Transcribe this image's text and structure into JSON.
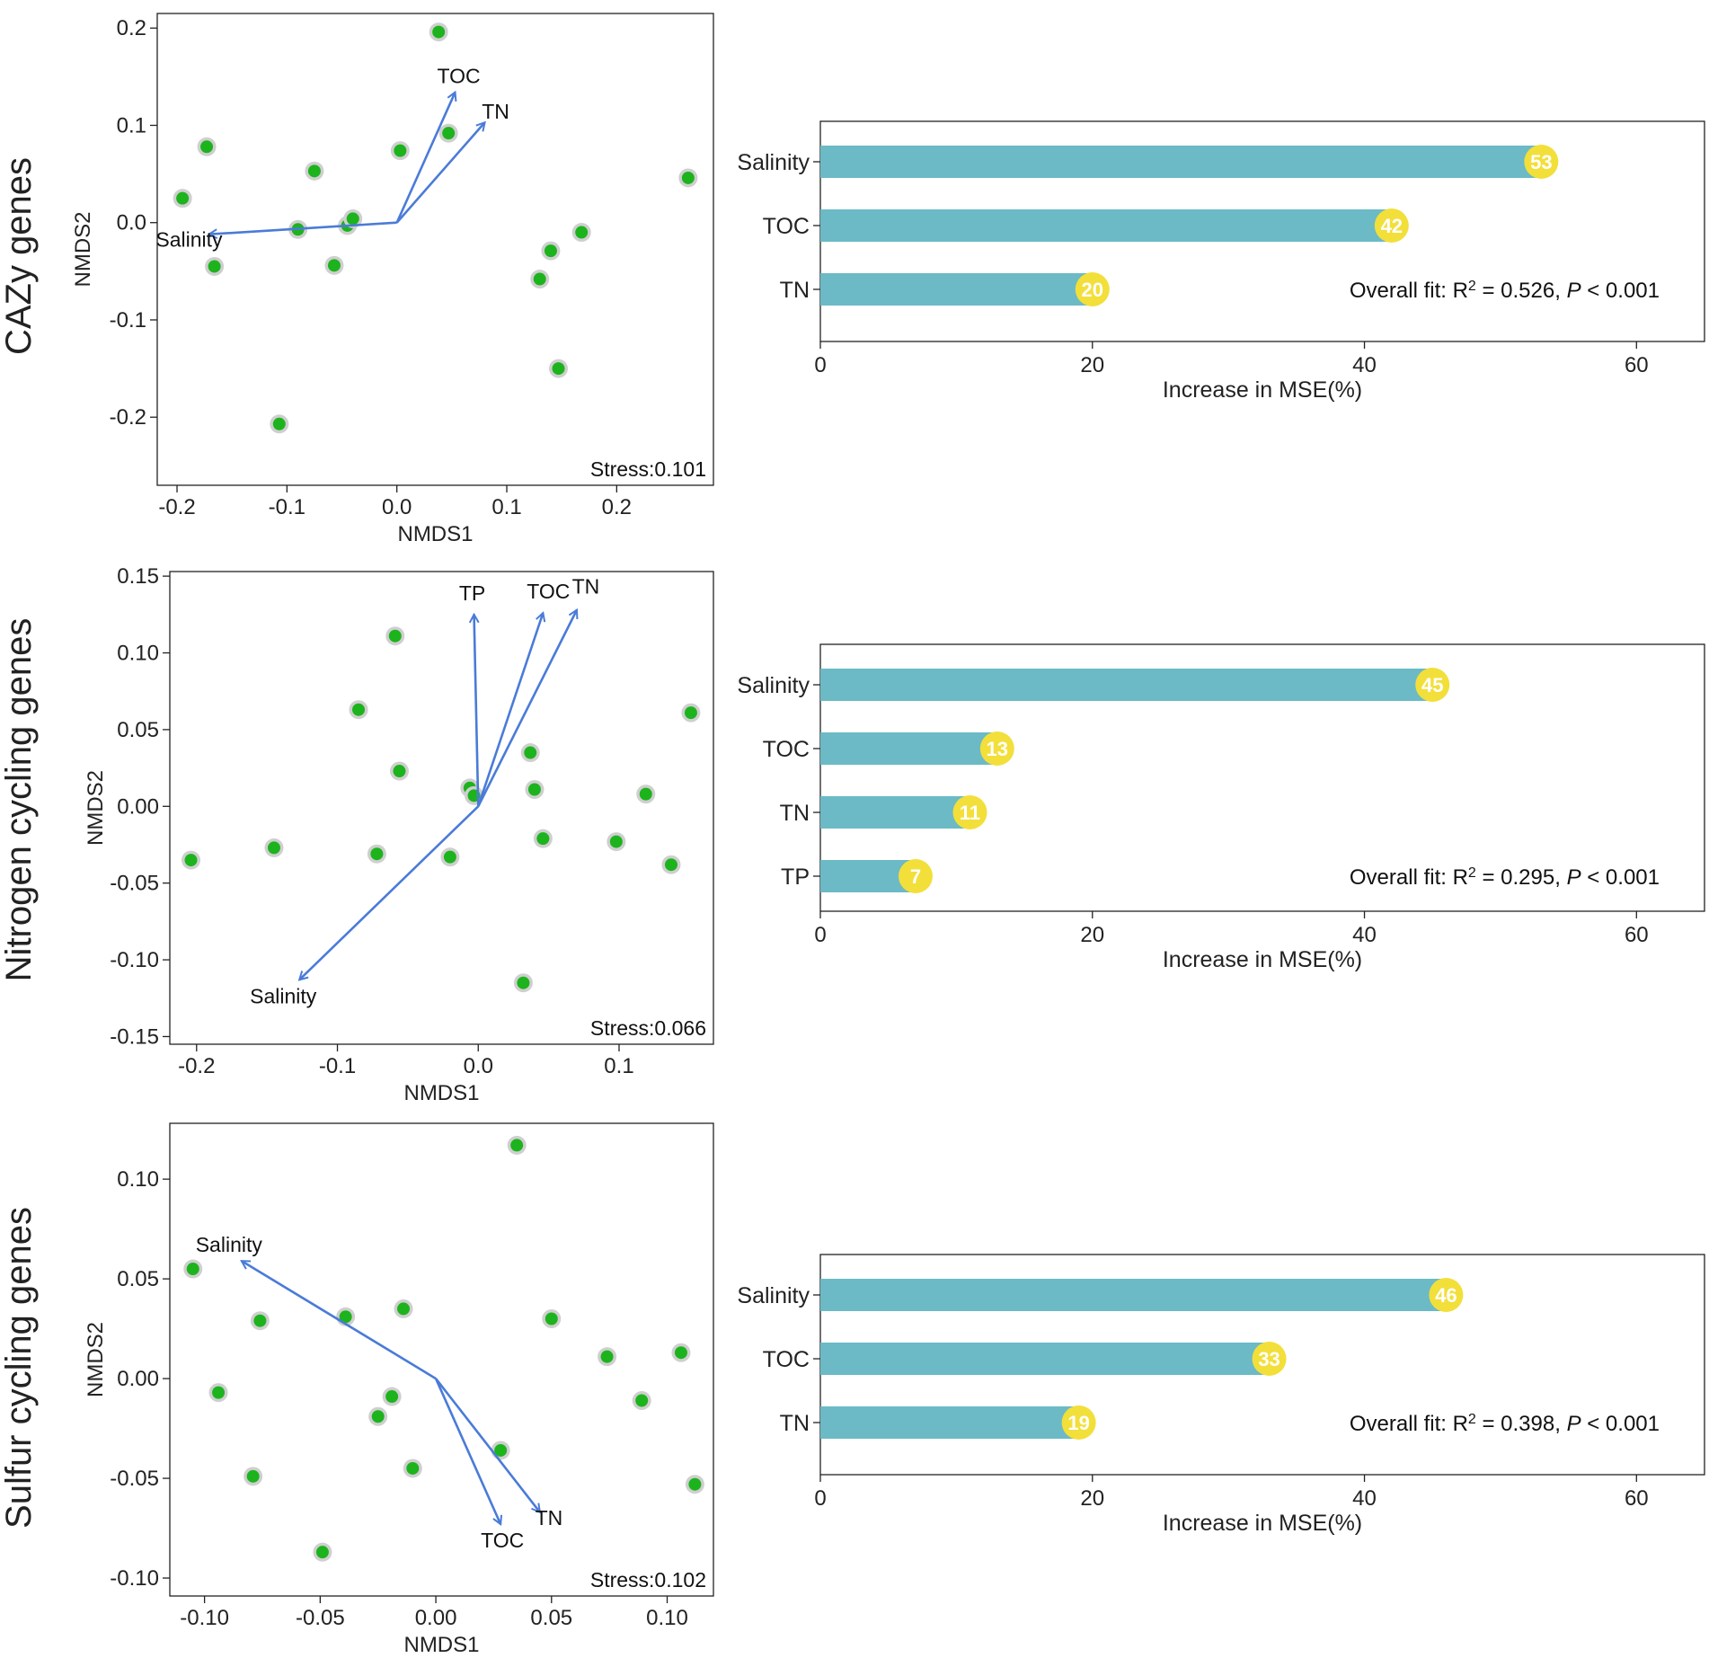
{
  "colors": {
    "point_fill": "#1db31d",
    "point_ring": "#cfcfcf",
    "arrow": "#4a7bd8",
    "bar": "#6bbac6",
    "badge": "#f2df3a",
    "badge_text": "#ffffff",
    "axis": "#222222"
  },
  "chart_data": [
    {
      "id": "cazy",
      "type": "scatter",
      "row_label": "CAZy genes",
      "xlabel": "NMDS1",
      "ylabel": "NMDS2",
      "xlim": [
        -0.218,
        0.288
      ],
      "ylim": [
        -0.27,
        0.215
      ],
      "xticks": [
        -0.2,
        -0.1,
        0.0,
        0.1,
        0.2
      ],
      "xtick_labels": [
        "-0.2",
        "-0.1",
        "0.0",
        "0.1",
        "0.2"
      ],
      "yticks": [
        -0.2,
        -0.1,
        0.0,
        0.1,
        0.2
      ],
      "ytick_labels": [
        "-0.2",
        "-0.1",
        "0.0",
        "0.1",
        "0.2"
      ],
      "stress_label": "Stress:0.101",
      "points": [
        [
          -0.195,
          0.025
        ],
        [
          -0.173,
          0.078
        ],
        [
          -0.166,
          -0.045
        ],
        [
          -0.107,
          -0.207
        ],
        [
          -0.09,
          -0.007
        ],
        [
          -0.075,
          0.053
        ],
        [
          -0.057,
          -0.044
        ],
        [
          -0.045,
          -0.003
        ],
        [
          -0.04,
          0.004
        ],
        [
          0.003,
          0.074
        ],
        [
          0.038,
          0.196
        ],
        [
          0.047,
          0.092
        ],
        [
          0.13,
          -0.058
        ],
        [
          0.14,
          -0.029
        ],
        [
          0.147,
          -0.15
        ],
        [
          0.168,
          -0.01
        ],
        [
          0.265,
          0.046
        ]
      ],
      "vectors": [
        {
          "name": "Salinity",
          "x": -0.171,
          "y": -0.012
        },
        {
          "name": "TOC",
          "x": 0.053,
          "y": 0.134
        },
        {
          "name": "TN",
          "x": 0.08,
          "y": 0.103
        }
      ]
    },
    {
      "id": "cazy-rf",
      "type": "bar",
      "orientation": "horizontal",
      "categories": [
        "Salinity",
        "TOC",
        "TN"
      ],
      "values": [
        53,
        42,
        20
      ],
      "value_labels": [
        "53",
        "42",
        "20"
      ],
      "xlabel": "Increase in MSE(%)",
      "xlim": [
        0,
        65
      ],
      "xticks": [
        0,
        20,
        40,
        60
      ],
      "xtick_labels": [
        "0",
        "20",
        "40",
        "60"
      ],
      "fit_prefix": "Overall fit: R",
      "fit_sup": "2",
      "fit_mid": " = 0.526, ",
      "fit_p": "P",
      "fit_tail": " < 0.001"
    },
    {
      "id": "nitrogen",
      "type": "scatter",
      "row_label": "Nitrogen cycling genes",
      "xlabel": "NMDS1",
      "ylabel": "NMDS2",
      "xlim": [
        -0.219,
        0.167
      ],
      "ylim": [
        -0.155,
        0.153
      ],
      "xticks": [
        -0.2,
        -0.1,
        0.0,
        0.1
      ],
      "xtick_labels": [
        "-0.2",
        "-0.1",
        "0.0",
        "0.1"
      ],
      "yticks": [
        -0.15,
        -0.1,
        -0.05,
        0.0,
        0.05,
        0.1,
        0.15
      ],
      "ytick_labels": [
        "-0.15",
        "-0.10",
        "-0.05",
        "0.00",
        "0.05",
        "0.10",
        "0.15"
      ],
      "stress_label": "Stress:0.066",
      "points": [
        [
          -0.204,
          -0.035
        ],
        [
          -0.145,
          -0.027
        ],
        [
          -0.085,
          0.063
        ],
        [
          -0.072,
          -0.031
        ],
        [
          -0.059,
          0.111
        ],
        [
          -0.056,
          0.023
        ],
        [
          -0.02,
          -0.033
        ],
        [
          -0.006,
          0.012
        ],
        [
          -0.003,
          0.007
        ],
        [
          0.032,
          -0.115
        ],
        [
          0.037,
          0.035
        ],
        [
          0.04,
          0.011
        ],
        [
          0.046,
          -0.021
        ],
        [
          0.098,
          -0.023
        ],
        [
          0.119,
          0.008
        ],
        [
          0.137,
          -0.038
        ],
        [
          0.151,
          0.061
        ]
      ],
      "vectors": [
        {
          "name": "Salinity",
          "x": -0.127,
          "y": -0.113
        },
        {
          "name": "TP",
          "x": -0.003,
          "y": 0.125
        },
        {
          "name": "TOC",
          "x": 0.046,
          "y": 0.126
        },
        {
          "name": "TN",
          "x": 0.07,
          "y": 0.128
        }
      ]
    },
    {
      "id": "nitrogen-rf",
      "type": "bar",
      "orientation": "horizontal",
      "categories": [
        "Salinity",
        "TOC",
        "TN",
        "TP"
      ],
      "values": [
        45,
        13,
        11,
        7
      ],
      "value_labels": [
        "45",
        "13",
        "11",
        "7"
      ],
      "xlabel": "Increase in MSE(%)",
      "xlim": [
        0,
        65
      ],
      "xticks": [
        0,
        20,
        40,
        60
      ],
      "xtick_labels": [
        "0",
        "20",
        "40",
        "60"
      ],
      "fit_prefix": "Overall fit: R",
      "fit_sup": "2",
      "fit_mid": " = 0.295, ",
      "fit_p": "P",
      "fit_tail": " < 0.001"
    },
    {
      "id": "sulfur",
      "type": "scatter",
      "row_label": "Sulfur cycling genes",
      "xlabel": "NMDS1",
      "ylabel": "NMDS2",
      "xlim": [
        -0.115,
        0.12
      ],
      "ylim": [
        -0.109,
        0.128
      ],
      "xticks": [
        -0.1,
        -0.05,
        0.0,
        0.05,
        0.1
      ],
      "xtick_labels": [
        "-0.10",
        "-0.05",
        "0.00",
        "0.05",
        "0.10"
      ],
      "yticks": [
        -0.1,
        -0.05,
        0.0,
        0.05,
        0.1
      ],
      "ytick_labels": [
        "-0.10",
        "-0.05",
        "0.00",
        "0.05",
        "0.10"
      ],
      "stress_label": "Stress:0.102",
      "points": [
        [
          -0.105,
          0.055
        ],
        [
          -0.094,
          -0.007
        ],
        [
          -0.079,
          -0.049
        ],
        [
          -0.076,
          0.029
        ],
        [
          -0.049,
          -0.087
        ],
        [
          -0.039,
          0.031
        ],
        [
          -0.025,
          -0.019
        ],
        [
          -0.019,
          -0.009
        ],
        [
          -0.014,
          0.035
        ],
        [
          -0.01,
          -0.045
        ],
        [
          0.028,
          -0.036
        ],
        [
          0.035,
          0.117
        ],
        [
          0.05,
          0.03
        ],
        [
          0.074,
          0.011
        ],
        [
          0.089,
          -0.011
        ],
        [
          0.106,
          0.013
        ],
        [
          0.112,
          -0.053
        ]
      ],
      "vectors": [
        {
          "name": "Salinity",
          "x": -0.084,
          "y": 0.059
        },
        {
          "name": "TOC",
          "x": 0.028,
          "y": -0.073
        },
        {
          "name": "TN",
          "x": 0.045,
          "y": -0.067
        }
      ]
    },
    {
      "id": "sulfur-rf",
      "type": "bar",
      "orientation": "horizontal",
      "categories": [
        "Salinity",
        "TOC",
        "TN"
      ],
      "values": [
        46,
        33,
        19
      ],
      "value_labels": [
        "46",
        "33",
        "19"
      ],
      "xlabel": "Increase in MSE(%)",
      "xlim": [
        0,
        65
      ],
      "xticks": [
        0,
        20,
        40,
        60
      ],
      "xtick_labels": [
        "0",
        "20",
        "40",
        "60"
      ],
      "fit_prefix": "Overall fit: R",
      "fit_sup": "2",
      "fit_mid": " = 0.398, ",
      "fit_p": "P",
      "fit_tail": " < 0.001"
    }
  ]
}
